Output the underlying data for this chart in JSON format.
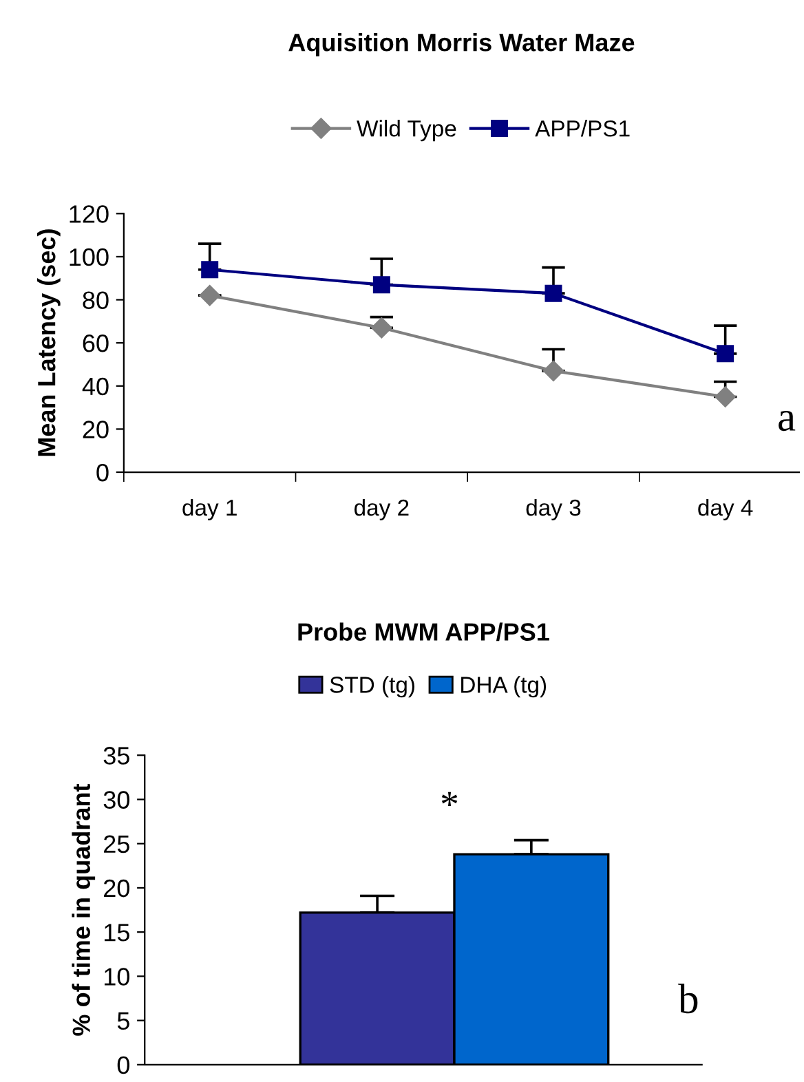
{
  "chart_data": [
    {
      "type": "line",
      "title": "Aquisition Morris Water Maze",
      "ylabel": "Mean Latency (sec)",
      "categories": [
        "day 1",
        "day 2",
        "day 3",
        "day 4"
      ],
      "series": [
        {
          "name": "Wild Type",
          "color": "#808080",
          "marker": "diamond",
          "values": [
            82,
            67,
            47,
            35
          ],
          "errors": [
            null,
            [
              67,
              72
            ],
            [
              47,
              57
            ],
            [
              35,
              42
            ]
          ]
        },
        {
          "name": "APP/PS1",
          "color": "#000080",
          "marker": "square",
          "values": [
            94,
            87,
            83,
            55
          ],
          "errors": [
            [
              94,
              106
            ],
            [
              87,
              99
            ],
            [
              83,
              95
            ],
            [
              55,
              68
            ]
          ]
        }
      ],
      "ylim": [
        0,
        120
      ],
      "yticks": [
        0,
        20,
        40,
        60,
        80,
        100,
        120
      ],
      "grid": false,
      "legend": "top",
      "line_style": "solid",
      "annotations": [
        "a"
      ]
    },
    {
      "type": "bar",
      "title": "Probe MWM APP/PS1",
      "ylabel": "% of time in quadrant",
      "categories": [
        null
      ],
      "series": [
        {
          "name": "STD (tg)",
          "color": "#333399",
          "values": [
            17.2
          ],
          "errors": [
            [
              17.2,
              19.1
            ]
          ]
        },
        {
          "name": "DHA (tg)",
          "color": "#0066cc",
          "values": [
            23.8
          ],
          "errors": [
            [
              23.8,
              25.4
            ]
          ]
        }
      ],
      "ylim": [
        0,
        35
      ],
      "yticks": [
        0,
        5,
        10,
        15,
        20,
        25,
        30,
        35
      ],
      "grid": false,
      "legend": "top",
      "annotations": [
        "*",
        "b"
      ]
    }
  ]
}
